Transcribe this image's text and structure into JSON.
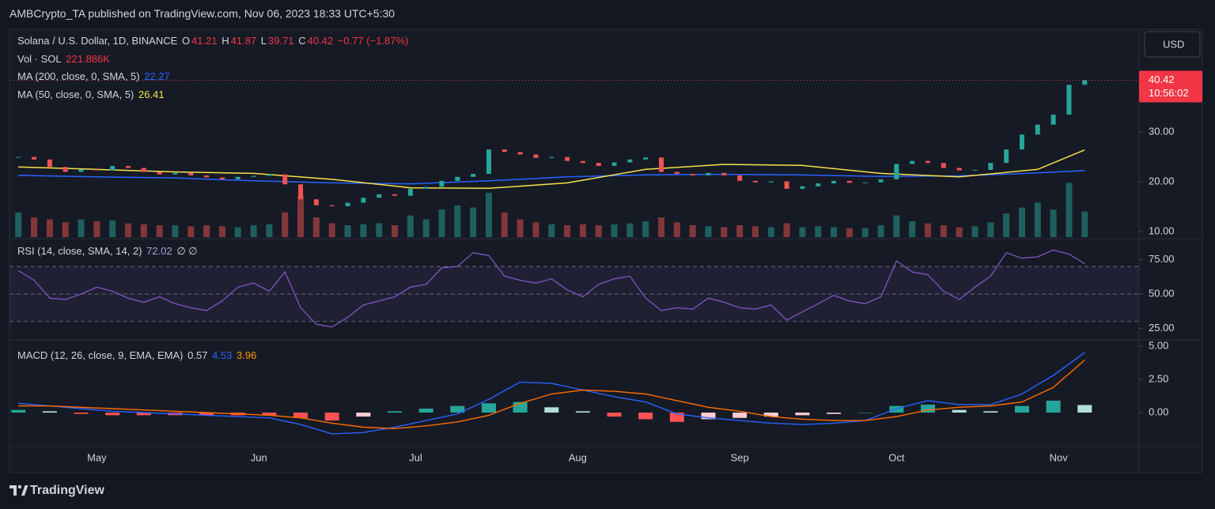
{
  "header": {
    "publisher": "AMBCrypto_TA published on TradingView.com, Nov 06, 2023 18:33 UTC+5:30"
  },
  "currency_button": "USD",
  "footer": "TradingView",
  "chart_data": [
    {
      "type": "candlestick",
      "title": "Solana / U.S. Dollar, 1D, BINANCE",
      "ohlc": [
        {
          "label": "O",
          "value": "41.21"
        },
        {
          "label": "H",
          "value": "41.87"
        },
        {
          "label": "L",
          "value": "39.71"
        },
        {
          "label": "C",
          "value": "40.42"
        }
      ],
      "change": "−0.77 (−1.87%)",
      "countdown": "10:56:02",
      "up_color": "#26a69a",
      "down_color": "#ef5350",
      "xlim": [
        -0.7,
        215.4
      ],
      "xticks": [
        {
          "value": 16,
          "label": "May"
        },
        {
          "value": 47,
          "label": "Jun"
        },
        {
          "value": 77,
          "label": "Jul"
        },
        {
          "value": 108,
          "label": "Aug"
        },
        {
          "value": 139,
          "label": "Sep"
        },
        {
          "value": 169,
          "label": "Oct"
        },
        {
          "value": 200,
          "label": "Nov"
        }
      ],
      "ylim": [
        8.9,
        50.5
      ],
      "yticks": [
        {
          "value": 10,
          "label": "10.00"
        },
        {
          "value": 20,
          "label": "20.00"
        },
        {
          "value": 30,
          "label": "30.00"
        }
      ],
      "x": [
        1,
        4,
        7,
        10,
        13,
        16,
        19,
        22,
        25,
        28,
        31,
        34,
        37,
        40,
        43,
        46,
        49,
        52,
        55,
        58,
        61,
        64,
        67,
        70,
        73,
        76,
        79,
        82,
        85,
        88,
        91,
        94,
        97,
        100,
        103,
        106,
        109,
        112,
        115,
        118,
        121,
        124,
        127,
        130,
        133,
        136,
        139,
        142,
        145,
        148,
        151,
        154,
        157,
        160,
        163,
        166,
        169,
        172,
        175,
        178,
        181,
        184,
        187,
        190,
        193,
        196,
        199,
        202,
        205
      ],
      "values": [
        25.0,
        24.5,
        23.0,
        22.0,
        22.5,
        22.3,
        23.2,
        22.8,
        22.0,
        21.5,
        21.8,
        21.3,
        20.9,
        20.5,
        21.0,
        21.2,
        21.5,
        19.5,
        16.5,
        15.3,
        15.1,
        15.8,
        16.8,
        17.5,
        17.2,
        18.6,
        19.0,
        20.2,
        21.0,
        21.6,
        26.5,
        26.0,
        25.5,
        24.8,
        25.0,
        24.2,
        23.8,
        23.2,
        23.9,
        24.5,
        24.9,
        22.0,
        21.6,
        21.3,
        21.8,
        21.3,
        20.2,
        19.9,
        20.1,
        18.6,
        19.1,
        19.7,
        20.2,
        19.8,
        19.9,
        20.5,
        23.6,
        24.2,
        23.8,
        22.8,
        22.3,
        22.4,
        23.8,
        26.5,
        29.5,
        31.5,
        33.5,
        39.5,
        40.42
      ],
      "volume": {
        "name": "Vol · SOL",
        "last": "221.886K",
        "ylim": [
          0,
          21
        ],
        "values": [
          2.5,
          2.0,
          1.8,
          1.5,
          1.8,
          1.6,
          1.7,
          1.4,
          1.3,
          1.2,
          1.2,
          1.1,
          1.2,
          1.1,
          1.0,
          1.2,
          1.3,
          2.5,
          4.2,
          2.0,
          1.4,
          1.2,
          1.3,
          1.4,
          1.2,
          2.2,
          1.8,
          2.8,
          3.2,
          3.0,
          4.5,
          2.5,
          1.8,
          1.5,
          1.3,
          1.2,
          1.3,
          1.2,
          1.3,
          1.4,
          1.6,
          2.0,
          1.5,
          1.2,
          1.1,
          1.0,
          1.2,
          1.1,
          1.0,
          1.4,
          1.0,
          1.1,
          1.0,
          0.9,
          0.9,
          1.2,
          2.2,
          1.6,
          1.4,
          1.2,
          1.0,
          1.1,
          1.5,
          2.4,
          3.0,
          3.5,
          2.8,
          5.5,
          2.6
        ]
      },
      "overlays": [
        {
          "name": "MA (200, close, 0, SMA, 5)",
          "color": "#2962ff",
          "x": [
            1,
            16,
            31,
            46,
            61,
            76,
            91,
            106,
            121,
            136,
            151,
            166,
            181,
            196,
            205
          ],
          "values": [
            21.3,
            21.0,
            20.8,
            20.2,
            19.8,
            19.6,
            20.2,
            21.0,
            21.4,
            21.5,
            21.4,
            21.1,
            21.2,
            21.8,
            22.27
          ]
        },
        {
          "name": "MA (50, close, 0, SMA, 5)",
          "color": "#f5e14b",
          "x": [
            1,
            16,
            31,
            46,
            61,
            76,
            91,
            106,
            121,
            136,
            151,
            166,
            181,
            196,
            205
          ],
          "values": [
            23.0,
            22.5,
            22.0,
            21.7,
            20.5,
            18.8,
            18.7,
            19.8,
            22.5,
            23.5,
            23.3,
            21.7,
            21.0,
            22.5,
            26.41
          ]
        }
      ]
    },
    {
      "type": "line",
      "title": "RSI (14, close, SMA, 14, 2)",
      "extra": "∅ ∅",
      "xlim": [
        -0.7,
        215.4
      ],
      "ylim": [
        17.8,
        88.5
      ],
      "yticks": [
        {
          "value": 25,
          "label": "25.00"
        },
        {
          "value": 50,
          "label": "50.00"
        },
        {
          "value": 75,
          "label": "75.00"
        }
      ],
      "levels": [
        30,
        50,
        70
      ],
      "band": [
        30,
        70
      ],
      "x": [
        1,
        4,
        7,
        10,
        13,
        16,
        19,
        22,
        25,
        28,
        31,
        34,
        37,
        40,
        43,
        46,
        49,
        52,
        55,
        58,
        61,
        64,
        67,
        70,
        73,
        76,
        79,
        82,
        85,
        88,
        91,
        94,
        97,
        100,
        103,
        106,
        109,
        112,
        115,
        118,
        121,
        124,
        127,
        130,
        133,
        136,
        139,
        142,
        145,
        148,
        151,
        154,
        157,
        160,
        163,
        166,
        169,
        172,
        175,
        178,
        181,
        184,
        187,
        190,
        193,
        196,
        199,
        202,
        205
      ],
      "series": [
        {
          "color": "#7e57c2",
          "values": [
            67,
            60,
            47,
            46,
            50,
            55,
            52,
            47,
            44,
            48,
            43,
            40,
            38,
            45,
            55,
            58,
            52,
            66,
            40,
            28,
            26,
            33,
            42,
            45,
            48,
            55,
            57,
            69,
            70,
            80,
            78,
            63,
            60,
            58,
            61,
            53,
            48,
            57,
            61,
            63,
            47,
            38,
            40,
            39,
            47,
            44,
            40,
            39,
            42,
            31,
            37,
            43,
            49,
            45,
            43,
            48,
            74,
            66,
            64,
            52,
            46,
            55,
            63,
            80,
            76,
            77,
            82,
            79,
            72.02
          ]
        }
      ]
    },
    {
      "type": "macd",
      "title": "MACD (12, 26, close, 9, EMA, EMA)",
      "xlim": [
        -0.7,
        215.4
      ],
      "ylim": [
        -2.56,
        5.48
      ],
      "yticks": [
        {
          "value": 0,
          "label": "0.00"
        },
        {
          "value": 2.5,
          "label": "2.50"
        },
        {
          "value": 5,
          "label": "5.00"
        }
      ],
      "x": [
        1,
        7,
        13,
        19,
        25,
        31,
        37,
        43,
        49,
        55,
        61,
        67,
        73,
        79,
        85,
        91,
        97,
        103,
        109,
        115,
        121,
        127,
        133,
        139,
        145,
        151,
        157,
        163,
        169,
        175,
        181,
        187,
        193,
        199,
        205
      ],
      "histogram": {
        "colors": [
          "#26a69a",
          "#b2dfdb",
          "#ff5252",
          "#ffcdd2"
        ],
        "values": [
          0.2,
          0.1,
          -0.1,
          -0.2,
          -0.2,
          -0.2,
          -0.2,
          -0.2,
          -0.2,
          -0.4,
          -0.6,
          -0.3,
          0.1,
          0.3,
          0.5,
          0.7,
          0.8,
          0.4,
          0.1,
          -0.3,
          -0.5,
          -0.7,
          -0.5,
          -0.4,
          -0.3,
          -0.2,
          -0.1,
          0.0,
          0.5,
          0.6,
          0.2,
          0.1,
          0.5,
          0.9,
          0.57
        ]
      },
      "macd": {
        "color": "#2962ff",
        "values": [
          0.7,
          0.5,
          0.3,
          0.1,
          0.0,
          -0.1,
          -0.2,
          -0.3,
          -0.4,
          -0.9,
          -1.6,
          -1.5,
          -1.1,
          -0.6,
          -0.1,
          1.0,
          2.3,
          2.2,
          1.7,
          1.2,
          0.8,
          -0.1,
          -0.4,
          -0.6,
          -0.8,
          -0.9,
          -0.8,
          -0.6,
          0.3,
          0.9,
          0.6,
          0.6,
          1.4,
          2.8,
          4.53
        ]
      },
      "signal": {
        "color": "#ff6d00",
        "values": [
          0.5,
          0.5,
          0.4,
          0.3,
          0.2,
          0.1,
          0.0,
          -0.1,
          -0.2,
          -0.4,
          -0.8,
          -1.1,
          -1.2,
          -1.0,
          -0.7,
          -0.2,
          0.7,
          1.4,
          1.7,
          1.6,
          1.4,
          0.9,
          0.4,
          0.1,
          -0.3,
          -0.5,
          -0.6,
          -0.6,
          -0.3,
          0.2,
          0.4,
          0.5,
          0.8,
          1.9,
          3.96
        ]
      }
    }
  ]
}
